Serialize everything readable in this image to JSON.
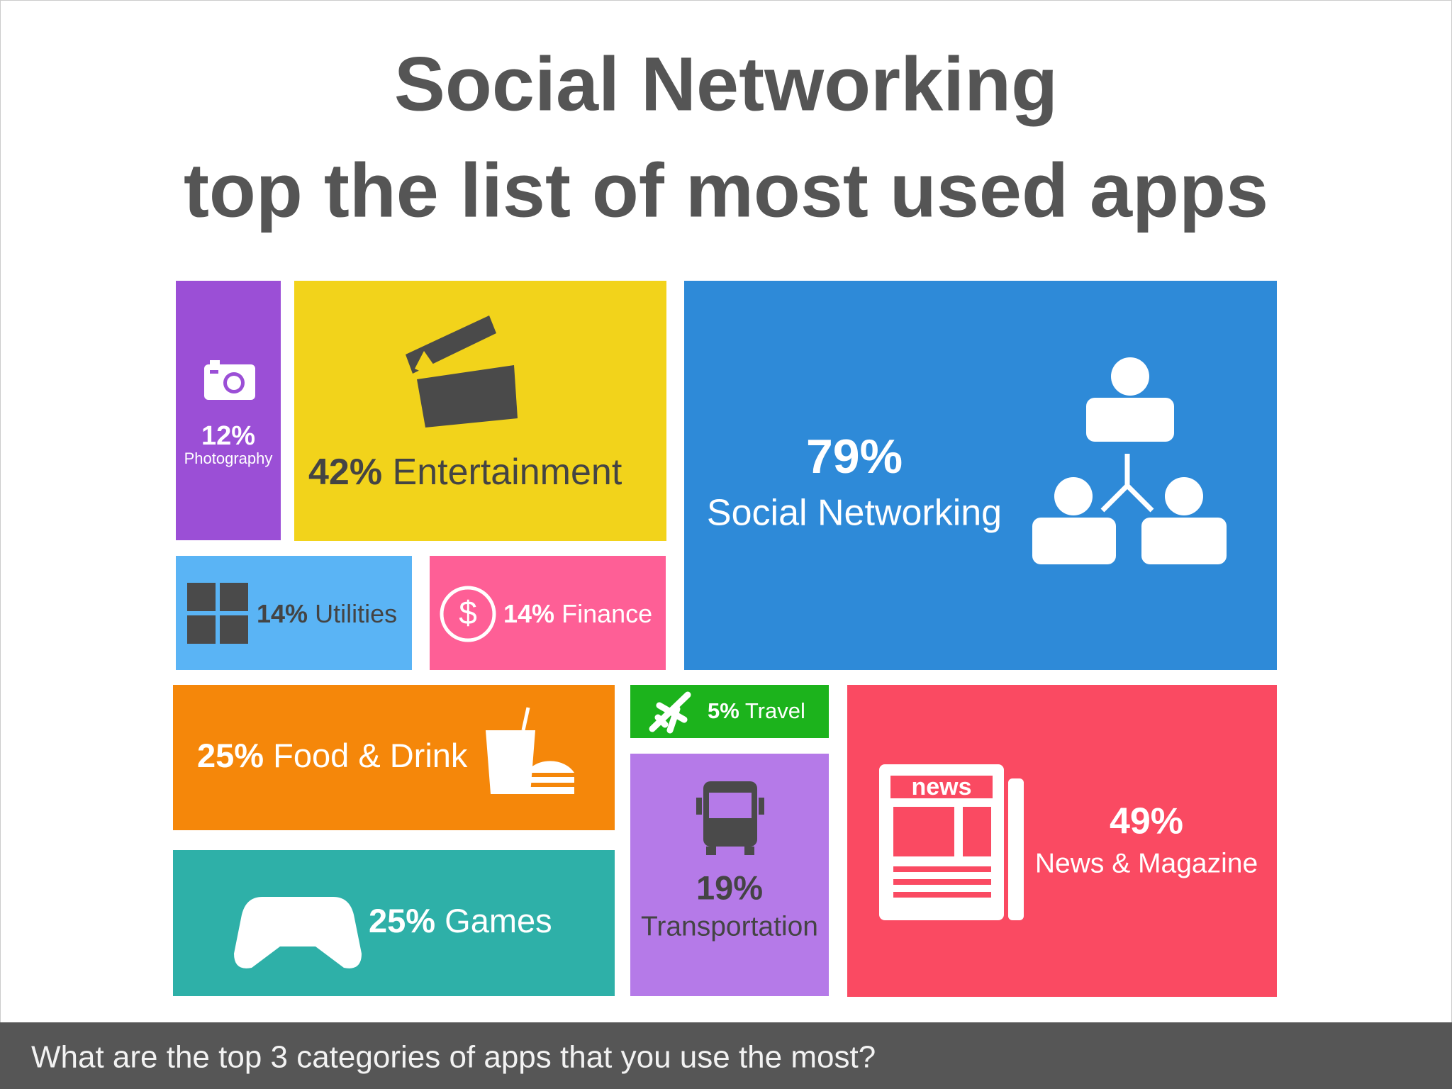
{
  "header": {
    "title_line1": "Social Networking",
    "title_line2": "top the list of most used apps"
  },
  "tiles": [
    {
      "percent": "12%",
      "label": "Photography"
    },
    {
      "percent": "42%",
      "label": "Entertainment"
    },
    {
      "percent": "79%",
      "label": "Social Networking"
    },
    {
      "percent": "14%",
      "label": "Utilities"
    },
    {
      "percent": "14%",
      "label": "Finance"
    },
    {
      "percent": "25%",
      "label": "Food & Drink"
    },
    {
      "percent": "5%",
      "label": "Travel"
    },
    {
      "percent": "49%",
      "label": "News & Magazine"
    },
    {
      "percent": "25%",
      "label": "Games"
    },
    {
      "percent": "19%",
      "label": "Transportation"
    }
  ],
  "footer": {
    "question": "What are the top 3 categories of apps that you use the most?"
  }
}
